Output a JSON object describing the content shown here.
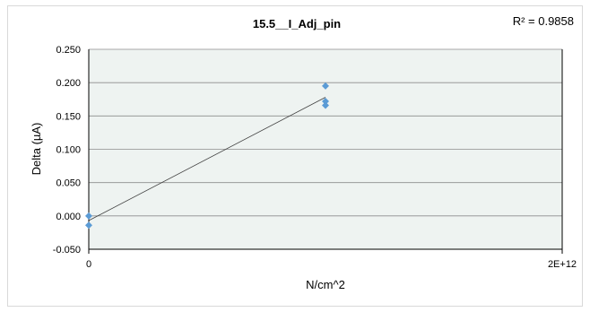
{
  "chart_data": {
    "type": "scatter",
    "title": "15.5__I_Adj_pin",
    "xlabel": "N/cm^2",
    "ylabel": "Delta (µA)",
    "xlim": [
      0,
      2000000000000
    ],
    "ylim": [
      -0.05,
      0.25
    ],
    "x_ticks": [
      "0",
      "2E+12"
    ],
    "y_ticks": [
      "-0.050",
      "0.000",
      "0.050",
      "0.100",
      "0.150",
      "0.200",
      "0.250"
    ],
    "grid": true,
    "points": [
      {
        "x": 0,
        "y": 0.0
      },
      {
        "x": 0,
        "y": -0.014
      },
      {
        "x": 1000000000000,
        "y": 0.195
      },
      {
        "x": 1000000000000,
        "y": 0.172
      },
      {
        "x": 1000000000000,
        "y": 0.166
      }
    ],
    "trendline": {
      "type": "linear",
      "x": [
        0,
        1000000000000
      ],
      "y": [
        -0.007,
        0.178
      ]
    },
    "r_squared_label": "R² = 0.9858",
    "colors": {
      "plot_background": "#eef3f1",
      "marker": "#5b9bd5",
      "gridline": "#8c8c8c",
      "trendline": "#404040"
    }
  }
}
